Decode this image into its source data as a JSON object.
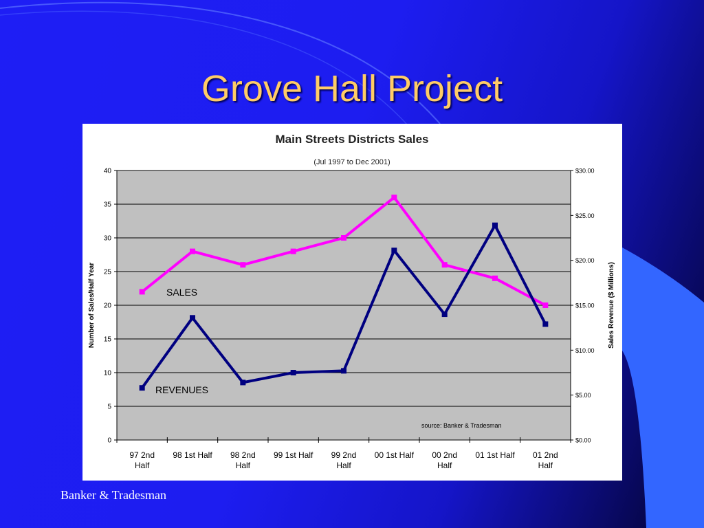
{
  "slide": {
    "title": "Grove Hall Project",
    "footer": "Banker & Tradesman",
    "colors": {
      "title": "#ffcc66",
      "background": "#1e1ef5",
      "accent_shape": "#3366ff"
    }
  },
  "chart_data": {
    "type": "line",
    "title": "Main Streets Districts Sales",
    "subtitle": "(Jul 1997 to Dec 2001)",
    "categories": [
      "97 2nd Half",
      "98 1st Half",
      "98 2nd Half",
      "99 1st Half",
      "99 2nd Half",
      "00 1st Half",
      "00 2nd Half",
      "01 1st Half",
      "01 2nd Half"
    ],
    "category_labels": [
      [
        "97 2nd",
        "Half"
      ],
      [
        "98 1st Half"
      ],
      [
        "98 2nd",
        "Half"
      ],
      [
        "99 1st Half"
      ],
      [
        "99 2nd",
        "Half"
      ],
      [
        "00 1st Half"
      ],
      [
        "00 2nd",
        "Half"
      ],
      [
        "01 1st  Half"
      ],
      [
        "01 2nd",
        "Half"
      ]
    ],
    "ylabel_left": "Number of Sales/Half Year",
    "ylabel_right": "Sales Revenue ($ Millions)",
    "ylim_left": [
      0,
      40
    ],
    "yticks_left": [
      "0",
      "5",
      "10",
      "15",
      "20",
      "25",
      "30",
      "35",
      "40"
    ],
    "ylim_right": [
      0,
      30
    ],
    "yticks_right": [
      "$0.00",
      "$5.00",
      "$10.00",
      "$15.00",
      "$20.00",
      "$25.00",
      "$30.00"
    ],
    "grid": true,
    "plot_background": "#c0c0c0",
    "series": [
      {
        "name": "SALES",
        "axis": "left",
        "color": "#ff00ff",
        "values": [
          22,
          28,
          26,
          28,
          30,
          36,
          26,
          24,
          20
        ]
      },
      {
        "name": "REVENUES",
        "axis": "right",
        "color": "#000080",
        "values": [
          5.8,
          13.6,
          6.4,
          7.5,
          7.7,
          21.1,
          14.0,
          23.9,
          12.9
        ]
      }
    ],
    "annotations": [
      "source:  Banker & Tradesman"
    ]
  }
}
